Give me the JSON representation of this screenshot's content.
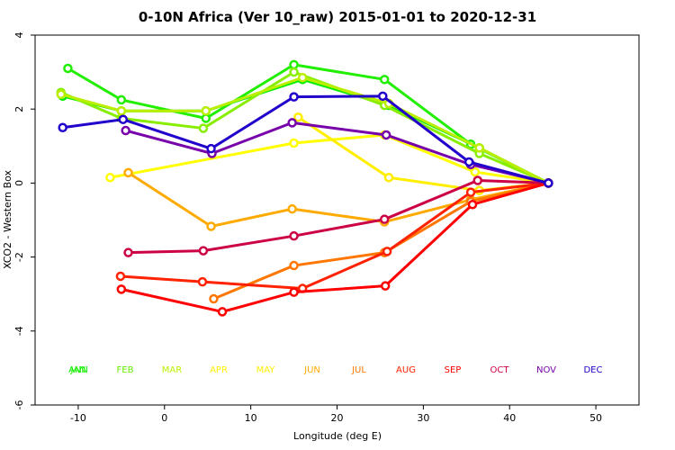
{
  "chart_data": {
    "type": "line",
    "title": "0-10N Africa (Ver 10_raw)   2015-01-01 to 2020-12-31",
    "xlabel": "Longitude (deg E)",
    "ylabel": "XCO2 - Western Box",
    "xlim": [
      -15,
      55
    ],
    "ylim": [
      -6,
      4
    ],
    "xticks": [
      -10,
      0,
      10,
      20,
      30,
      40,
      50
    ],
    "yticks": [
      -6,
      -4,
      -2,
      0,
      2,
      4
    ],
    "grid": false,
    "legend_placement": "bottom, inside plot",
    "series": [
      {
        "name": "ANN",
        "color": "#00ee00",
        "points": [
          [
            -11.8,
            2.35
          ],
          [
            -5,
            1.95
          ],
          [
            4.8,
            1.95
          ],
          [
            16,
            2.8
          ],
          [
            26,
            2.1
          ],
          [
            36.5,
            0.95
          ],
          [
            44.5,
            0
          ]
        ]
      },
      {
        "name": "JAN",
        "color": "#22ee00",
        "points": [
          [
            -11.2,
            3.1
          ],
          [
            -5,
            2.25
          ],
          [
            4.8,
            1.75
          ],
          [
            15,
            3.2
          ],
          [
            25.5,
            2.8
          ],
          [
            35.5,
            1.05
          ],
          [
            44.5,
            0
          ]
        ]
      },
      {
        "name": "FEB",
        "color": "#88ee00",
        "points": [
          [
            -12,
            2.45
          ],
          [
            -5,
            1.75
          ],
          [
            4.5,
            1.48
          ],
          [
            15,
            3.0
          ],
          [
            25.5,
            2.1
          ],
          [
            36.5,
            0.8
          ],
          [
            44.5,
            0
          ]
        ]
      },
      {
        "name": "MAR",
        "color": "#bbee00",
        "points": [
          [
            -12,
            2.4
          ],
          [
            -5,
            1.95
          ],
          [
            4.8,
            1.95
          ],
          [
            16,
            2.85
          ],
          [
            26,
            2.15
          ],
          [
            36.5,
            0.95
          ],
          [
            44.5,
            0
          ]
        ]
      },
      {
        "name": "APR",
        "color": "#ffff00",
        "points": [
          [
            -6.3,
            0.15
          ],
          [
            15,
            1.08
          ],
          [
            25.5,
            1.3
          ],
          [
            36,
            0.3
          ],
          [
            44.5,
            0
          ]
        ]
      },
      {
        "name": "MAY",
        "color": "#ffee00",
        "points": [
          [
            15.5,
            1.78
          ],
          [
            26,
            0.15
          ],
          [
            36.5,
            -0.2
          ],
          [
            44.5,
            0
          ]
        ]
      },
      {
        "name": "JUN",
        "color": "#ffaa00",
        "points": [
          [
            -4.2,
            0.28
          ],
          [
            5.4,
            -1.17
          ],
          [
            14.8,
            -0.7
          ],
          [
            25.5,
            -1.05
          ],
          [
            35.5,
            -0.45
          ],
          [
            44.5,
            0
          ]
        ]
      },
      {
        "name": "JUL",
        "color": "#ff7700",
        "points": [
          [
            5.7,
            -3.13
          ],
          [
            15,
            -2.23
          ],
          [
            25.5,
            -1.88
          ],
          [
            35.5,
            -0.5
          ],
          [
            44.5,
            0
          ]
        ]
      },
      {
        "name": "AUG",
        "color": "#ff2200",
        "points": [
          [
            -5.1,
            -2.52
          ],
          [
            4.4,
            -2.67
          ],
          [
            16,
            -2.85
          ],
          [
            25.8,
            -1.85
          ],
          [
            35.5,
            -0.25
          ],
          [
            44.5,
            0
          ]
        ]
      },
      {
        "name": "SEP",
        "color": "#ff0000",
        "points": [
          [
            -5,
            -2.87
          ],
          [
            6.7,
            -3.48
          ],
          [
            15,
            -2.95
          ],
          [
            25.6,
            -2.78
          ],
          [
            35.7,
            -0.58
          ],
          [
            44.5,
            0
          ]
        ]
      },
      {
        "name": "OCT",
        "color": "#cc0044",
        "points": [
          [
            -4.2,
            -1.88
          ],
          [
            4.5,
            -1.83
          ],
          [
            15,
            -1.43
          ],
          [
            25.5,
            -0.98
          ],
          [
            36.3,
            0.07
          ],
          [
            44.5,
            0
          ]
        ]
      },
      {
        "name": "NOV",
        "color": "#7700aa",
        "points": [
          [
            -4.5,
            1.42
          ],
          [
            5.5,
            0.8
          ],
          [
            14.8,
            1.63
          ],
          [
            25.7,
            1.3
          ],
          [
            35.5,
            0.5
          ],
          [
            44.5,
            0
          ]
        ]
      },
      {
        "name": "DEC",
        "color": "#2200cc",
        "points": [
          [
            -11.8,
            1.5
          ],
          [
            -4.8,
            1.72
          ],
          [
            5.4,
            0.93
          ],
          [
            15,
            2.33
          ],
          [
            25.3,
            2.35
          ],
          [
            35.3,
            0.57
          ],
          [
            44.5,
            0
          ]
        ]
      }
    ],
    "legend": [
      {
        "label": "ANN",
        "color": "#00ee00"
      },
      {
        "label": "JAN",
        "color": "#22ee00"
      },
      {
        "label": "FEB",
        "color": "#66ee00"
      },
      {
        "label": "MAR",
        "color": "#bbee00"
      },
      {
        "label": "APR",
        "color": "#ffee00"
      },
      {
        "label": "MAY",
        "color": "#ffee00"
      },
      {
        "label": "JUN",
        "color": "#ffaa00"
      },
      {
        "label": "JUL",
        "color": "#ff7700"
      },
      {
        "label": "AUG",
        "color": "#ff2200"
      },
      {
        "label": "SEP",
        "color": "#ff0000"
      },
      {
        "label": "OCT",
        "color": "#cc0044"
      },
      {
        "label": "NOV",
        "color": "#7700aa"
      },
      {
        "label": "DEC",
        "color": "#2200cc"
      }
    ]
  }
}
